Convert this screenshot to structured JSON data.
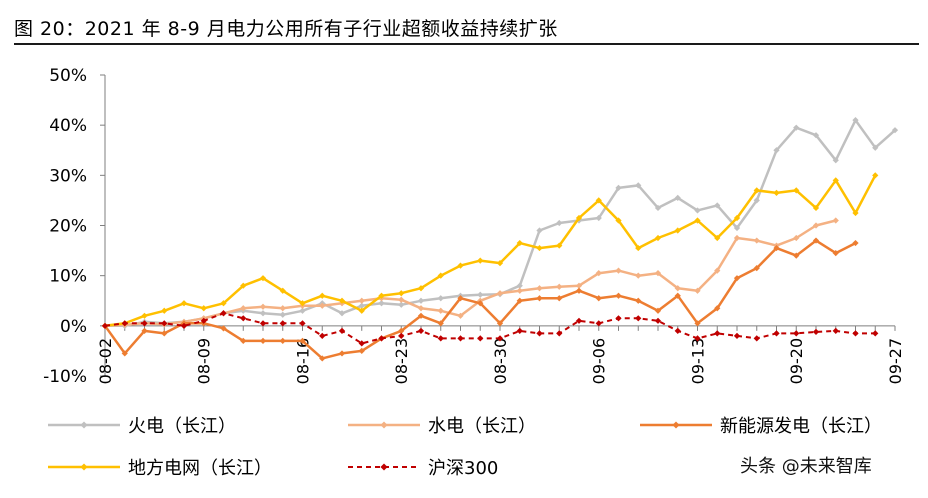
{
  "figure": {
    "title": "图 20：2021 年 8-9 月电力公用所有子行业超额收益持续扩张",
    "watermark": "头条 @未来智库"
  },
  "chart_data": {
    "type": "line",
    "y_ticks": [
      "50%",
      "40%",
      "30%",
      "20%",
      "10%",
      "0%",
      "-10%"
    ],
    "ylim": [
      -10,
      50
    ],
    "x_ticks": [
      "08-02",
      "08-09",
      "08-16",
      "08-23",
      "08-30",
      "09-06",
      "09-13",
      "09-20",
      "09-27"
    ],
    "grid": false,
    "legend_position": "bottom",
    "series": [
      {
        "name": "火电（长江）",
        "color": "#c0c0c0",
        "style": "solid",
        "points": [
          [
            0,
            0
          ],
          [
            1,
            0
          ],
          [
            2,
            0.8
          ],
          [
            3,
            0.5
          ],
          [
            4,
            0.8
          ],
          [
            5,
            1.5
          ],
          [
            6,
            2.5
          ],
          [
            7,
            3
          ],
          [
            8,
            2.5
          ],
          [
            9,
            2.2
          ],
          [
            10,
            3
          ],
          [
            11,
            4.5
          ],
          [
            12,
            2.5
          ],
          [
            13,
            4
          ],
          [
            14,
            4.5
          ],
          [
            15,
            4.2
          ],
          [
            16,
            5
          ],
          [
            17,
            5.5
          ],
          [
            18,
            6
          ],
          [
            19,
            6.2
          ],
          [
            20,
            6.3
          ],
          [
            21,
            8
          ],
          [
            22,
            19
          ],
          [
            23,
            20.5
          ],
          [
            24,
            21
          ],
          [
            25,
            21.5
          ],
          [
            26,
            27.5
          ],
          [
            27,
            28
          ],
          [
            28,
            23.5
          ],
          [
            29,
            25.5
          ],
          [
            30,
            23
          ],
          [
            31,
            24
          ],
          [
            32,
            19.5
          ],
          [
            33,
            25
          ],
          [
            34,
            35
          ],
          [
            35,
            39.5
          ],
          [
            36,
            38
          ],
          [
            37,
            33
          ],
          [
            38,
            41
          ],
          [
            39,
            35.5
          ],
          [
            40,
            39
          ]
        ]
      },
      {
        "name": "水电（长江）",
        "color": "#f4b183",
        "style": "solid",
        "points": [
          [
            0,
            0
          ],
          [
            1,
            0.2
          ],
          [
            2,
            0.5
          ],
          [
            3,
            0.3
          ],
          [
            4,
            0.8
          ],
          [
            5,
            1.5
          ],
          [
            6,
            2.5
          ],
          [
            7,
            3.5
          ],
          [
            8,
            3.8
          ],
          [
            9,
            3.5
          ],
          [
            10,
            4
          ],
          [
            11,
            4
          ],
          [
            12,
            4.5
          ],
          [
            13,
            5
          ],
          [
            14,
            5.5
          ],
          [
            15,
            5.2
          ],
          [
            16,
            3.5
          ],
          [
            17,
            3
          ],
          [
            18,
            2
          ],
          [
            19,
            5
          ],
          [
            20,
            6.5
          ],
          [
            21,
            7
          ],
          [
            22,
            7.5
          ],
          [
            23,
            7.8
          ],
          [
            24,
            8
          ],
          [
            25,
            10.5
          ],
          [
            26,
            11
          ],
          [
            27,
            10
          ],
          [
            28,
            10.5
          ],
          [
            29,
            7.5
          ],
          [
            30,
            7
          ],
          [
            31,
            11
          ],
          [
            32,
            17.5
          ],
          [
            33,
            17
          ],
          [
            34,
            16
          ],
          [
            35,
            17.5
          ],
          [
            36,
            20
          ],
          [
            37,
            21
          ]
        ]
      },
      {
        "name": "新能源发电（长江）",
        "color": "#ed7d31",
        "style": "solid",
        "points": [
          [
            0,
            0
          ],
          [
            1,
            -5.5
          ],
          [
            2,
            -1
          ],
          [
            3,
            -1.5
          ],
          [
            4,
            0.5
          ],
          [
            5,
            0.5
          ],
          [
            6,
            -0.5
          ],
          [
            7,
            -3
          ],
          [
            8,
            -3
          ],
          [
            9,
            -3
          ],
          [
            10,
            -3
          ],
          [
            11,
            -6.5
          ],
          [
            12,
            -5.5
          ],
          [
            13,
            -5
          ],
          [
            14,
            -2.5
          ],
          [
            15,
            -1
          ],
          [
            16,
            2
          ],
          [
            17,
            0.5
          ],
          [
            18,
            5.5
          ],
          [
            19,
            4.5
          ],
          [
            20,
            0.5
          ],
          [
            21,
            5
          ],
          [
            22,
            5.5
          ],
          [
            23,
            5.5
          ],
          [
            24,
            7
          ],
          [
            25,
            5.5
          ],
          [
            26,
            6
          ],
          [
            27,
            5
          ],
          [
            28,
            3
          ],
          [
            29,
            6
          ],
          [
            30,
            0.5
          ],
          [
            31,
            3.5
          ],
          [
            32,
            9.5
          ],
          [
            33,
            11.5
          ],
          [
            34,
            15.5
          ],
          [
            35,
            14
          ],
          [
            36,
            17
          ],
          [
            37,
            14.5
          ],
          [
            38,
            16.5
          ]
        ]
      },
      {
        "name": "地方电网（长江）",
        "color": "#ffc000",
        "style": "solid",
        "points": [
          [
            0,
            0
          ],
          [
            1,
            0.5
          ],
          [
            2,
            2
          ],
          [
            3,
            3
          ],
          [
            4,
            4.5
          ],
          [
            5,
            3.5
          ],
          [
            6,
            4.5
          ],
          [
            7,
            8
          ],
          [
            8,
            9.5
          ],
          [
            9,
            7
          ],
          [
            10,
            4.5
          ],
          [
            11,
            6
          ],
          [
            12,
            5
          ],
          [
            13,
            3
          ],
          [
            14,
            6
          ],
          [
            15,
            6.5
          ],
          [
            16,
            7.5
          ],
          [
            17,
            10
          ],
          [
            18,
            12
          ],
          [
            19,
            13
          ],
          [
            20,
            12.5
          ],
          [
            21,
            16.5
          ],
          [
            22,
            15.5
          ],
          [
            23,
            16
          ],
          [
            24,
            21.5
          ],
          [
            25,
            25
          ],
          [
            26,
            21
          ],
          [
            27,
            15.5
          ],
          [
            28,
            17.5
          ],
          [
            29,
            19
          ],
          [
            30,
            21
          ],
          [
            31,
            17.5
          ],
          [
            32,
            21.5
          ],
          [
            33,
            27
          ],
          [
            34,
            26.5
          ],
          [
            35,
            27
          ],
          [
            36,
            23.5
          ],
          [
            37,
            29
          ],
          [
            38,
            22.5
          ],
          [
            39,
            30
          ]
        ]
      },
      {
        "name": "沪深300",
        "color": "#c00000",
        "style": "dashed",
        "points": [
          [
            0,
            0
          ],
          [
            1,
            0.5
          ],
          [
            2,
            0.5
          ],
          [
            3,
            0.5
          ],
          [
            4,
            0
          ],
          [
            5,
            1
          ],
          [
            6,
            2.5
          ],
          [
            7,
            1.5
          ],
          [
            8,
            0.5
          ],
          [
            9,
            0.5
          ],
          [
            10,
            0.5
          ],
          [
            11,
            -2
          ],
          [
            12,
            -1
          ],
          [
            13,
            -3.5
          ],
          [
            14,
            -2.5
          ],
          [
            15,
            -2
          ],
          [
            16,
            -1
          ],
          [
            17,
            -2.5
          ],
          [
            18,
            -2.5
          ],
          [
            19,
            -2.5
          ],
          [
            20,
            -2.5
          ],
          [
            21,
            -1
          ],
          [
            22,
            -1.5
          ],
          [
            23,
            -1.5
          ],
          [
            24,
            1
          ],
          [
            25,
            0.5
          ],
          [
            26,
            1.5
          ],
          [
            27,
            1.5
          ],
          [
            28,
            1
          ],
          [
            29,
            -1
          ],
          [
            30,
            -2.5
          ],
          [
            31,
            -1.5
          ],
          [
            32,
            -2
          ],
          [
            33,
            -2.5
          ],
          [
            34,
            -1.5
          ],
          [
            35,
            -1.5
          ],
          [
            36,
            -1.2
          ],
          [
            37,
            -1
          ],
          [
            38,
            -1.5
          ],
          [
            39,
            -1.5
          ]
        ]
      }
    ]
  }
}
